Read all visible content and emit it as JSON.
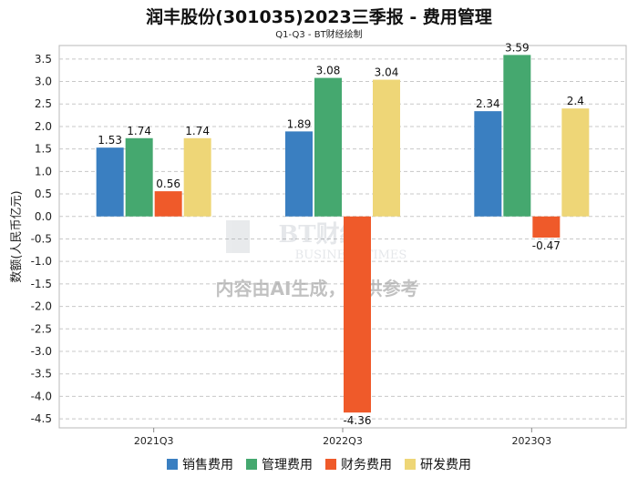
{
  "chart_data": {
    "type": "bar",
    "title": "润丰股份(301035)2023三季报 - 费用管理",
    "subtitle": "Q1-Q3 - BT财经绘制",
    "ylabel": "数额(人民币亿元)",
    "xlabel": "",
    "categories": [
      "2021Q3",
      "2022Q3",
      "2023Q3"
    ],
    "ylim": [
      -4.7,
      3.8
    ],
    "yticks": [
      3.5,
      3.0,
      2.5,
      2.0,
      1.5,
      1.0,
      0.5,
      0.0,
      -0.5,
      -1.0,
      -1.5,
      -2.0,
      -2.5,
      -3.0,
      -3.5,
      -4.0,
      -4.5
    ],
    "ytick_labels": [
      "3.5",
      "3.0",
      "2.5",
      "2.0",
      "1.5",
      "1.0",
      "0.5",
      "0.0",
      "-0.5",
      "-1.0",
      "-1.5",
      "-2.0",
      "-2.5",
      "-3.0",
      "-3.5",
      "-4.0",
      "-4.5"
    ],
    "series": [
      {
        "name": "销售费用",
        "color": "#3A7FC1",
        "values": [
          1.53,
          1.89,
          2.34
        ],
        "labels": [
          "1.53",
          "1.89",
          "2.34"
        ]
      },
      {
        "name": "管理费用",
        "color": "#45A86F",
        "values": [
          1.74,
          3.08,
          3.59
        ],
        "labels": [
          "1.74",
          "3.08",
          "3.59"
        ]
      },
      {
        "name": "财务费用",
        "color": "#EF5A2A",
        "values": [
          0.56,
          -4.36,
          -0.47
        ],
        "labels": [
          "0.56",
          "-4.36",
          "-0.47"
        ]
      },
      {
        "name": "研发费用",
        "color": "#EED677",
        "values": [
          1.74,
          3.04,
          2.4
        ],
        "labels": [
          "1.74",
          "3.04",
          "2.4"
        ]
      }
    ],
    "grid": true,
    "legend": "bottom"
  },
  "watermark": {
    "logo": "BT财经",
    "logo_sub": "BUSINESS TIMES",
    "notice": "内容由AI生成，仅供参考"
  }
}
